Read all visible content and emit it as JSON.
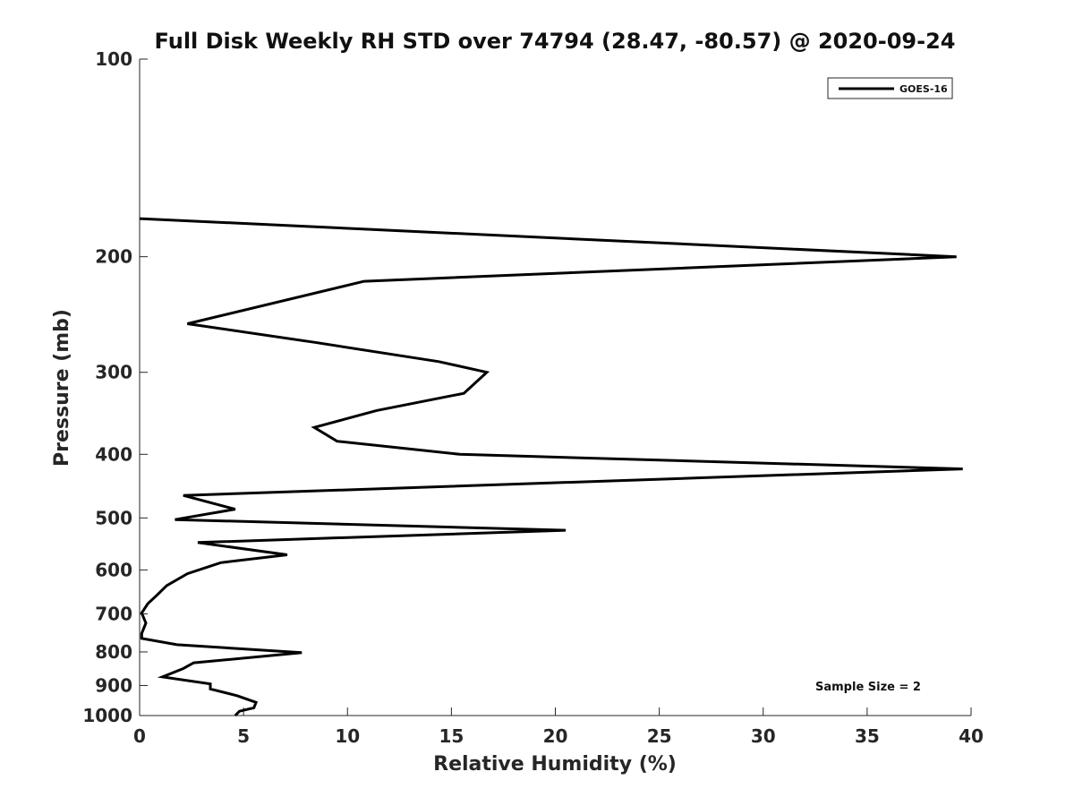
{
  "chart_data": {
    "type": "line",
    "title": "Full Disk Weekly RH STD over 74794 (28.47, -80.57) @ 2020-09-24",
    "xlabel": "Relative Humidity (%)",
    "ylabel": "Pressure (mb)",
    "xlim": [
      0,
      40
    ],
    "ylim": [
      100,
      1000
    ],
    "y_scale": "log",
    "y_reversed": true,
    "x_ticks": [
      "0",
      "5",
      "10",
      "15",
      "20",
      "25",
      "30",
      "35",
      "40"
    ],
    "y_ticks": [
      "100",
      "200",
      "300",
      "400",
      "500",
      "600",
      "700",
      "800",
      "900",
      "1000"
    ],
    "grid": false,
    "legend_position": "top-right",
    "annotation": "Sample Size = 2",
    "series": [
      {
        "name": "GOES-16",
        "color": "#000000",
        "x": [
          0,
          39.3,
          10.8,
          2.3,
          8.4,
          14.4,
          16.7,
          15.6,
          11.4,
          8.4,
          9.5,
          15.4,
          39.6,
          2.1,
          4.6,
          1.7,
          20.5,
          2.8,
          7.1,
          3.9,
          2.3,
          1.3,
          0.8,
          0.4,
          0.1,
          0.3,
          0.1,
          0.1,
          1.8,
          7.8,
          2.6,
          2.1,
          1.1,
          3.4,
          3.4,
          4.7,
          5.6,
          5.5,
          4.8,
          4.6
        ],
        "y": [
          175,
          200,
          218,
          253,
          270,
          289,
          300,
          323,
          343,
          364,
          382,
          400,
          421,
          462,
          485,
          503,
          522,
          545,
          569,
          585,
          608,
          634,
          657,
          675,
          698,
          723,
          750,
          763,
          780,
          802,
          831,
          848,
          873,
          895,
          911,
          933,
          955,
          973,
          985,
          1000
        ]
      }
    ]
  }
}
